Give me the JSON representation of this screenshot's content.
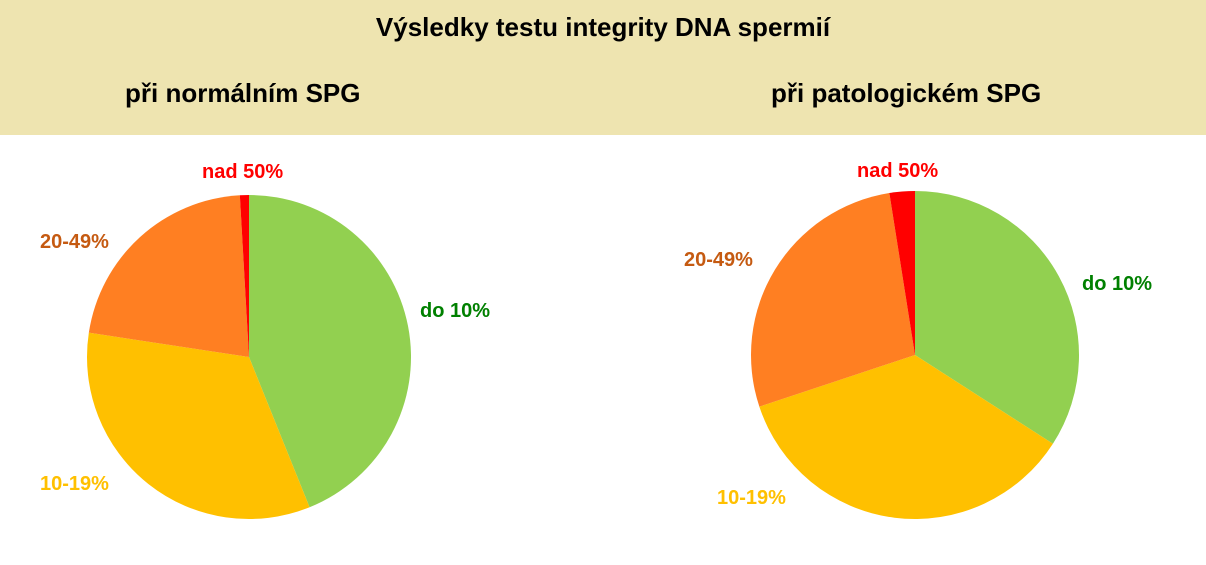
{
  "title": "Výsledky testu integrity DNA spermií",
  "chart_data": [
    {
      "type": "pie",
      "title": "při normálním SPG",
      "categories": [
        "do 10%",
        "10-19%",
        "20-49%",
        "nad 50%"
      ],
      "values": [
        43.9,
        33.5,
        21.7,
        0.9
      ],
      "colors": [
        "#92D050",
        "#FFC000",
        "#FF7F22",
        "#FF0000"
      ],
      "label_colors": [
        "#008000",
        "#FFC000",
        "#C55A11",
        "#FF0000"
      ]
    },
    {
      "type": "pie",
      "title": "při patologickém SPG",
      "categories": [
        "do 10%",
        "10-19%",
        "20-49%",
        "nad 50%"
      ],
      "values": [
        34.1,
        35.8,
        27.6,
        2.5
      ],
      "colors": [
        "#92D050",
        "#FFC000",
        "#FF7F22",
        "#FF0000"
      ],
      "label_colors": [
        "#008000",
        "#FFC000",
        "#C55A11",
        "#FF0000"
      ]
    }
  ]
}
